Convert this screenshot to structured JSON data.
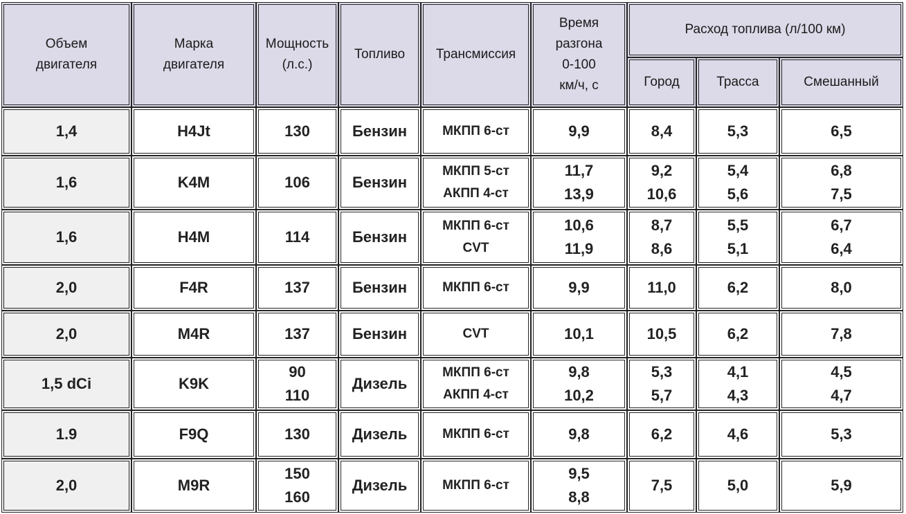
{
  "header": {
    "volume": [
      "Объем",
      "двигателя"
    ],
    "brand": [
      "Марка",
      "двигателя"
    ],
    "power": [
      "Мощность",
      "(л.с.)"
    ],
    "fuel": "Топливо",
    "transmission": "Трансмиссия",
    "accel": [
      "Время",
      "разгона",
      "0-100",
      "км/ч, с"
    ],
    "consumption": "Расход топлива (л/100 км)",
    "city": "Город",
    "highway": "Трасса",
    "mixed": "Смешанный"
  },
  "rows": [
    {
      "volume": "1,4",
      "brand": "H4Jt",
      "power": [
        "130"
      ],
      "fuel": "Бензин",
      "transmission": [
        "МКПП 6-ст"
      ],
      "accel": [
        "9,9"
      ],
      "city": [
        "8,4"
      ],
      "highway": [
        "5,3"
      ],
      "mixed": [
        "6,5"
      ]
    },
    {
      "volume": "1,6",
      "brand": "K4M",
      "power": [
        "106"
      ],
      "fuel": "Бензин",
      "transmission": [
        "МКПП 5-ст",
        "АКПП 4-ст"
      ],
      "accel": [
        "11,7",
        "13,9"
      ],
      "city": [
        "9,2",
        "10,6"
      ],
      "highway": [
        "5,4",
        "5,6"
      ],
      "mixed": [
        "6,8",
        "7,5"
      ]
    },
    {
      "volume": "1,6",
      "brand": "H4M",
      "power": [
        "114"
      ],
      "fuel": "Бензин",
      "transmission": [
        "МКПП 6-ст",
        "CVT"
      ],
      "accel": [
        "10,6",
        "11,9"
      ],
      "city": [
        "8,7",
        "8,6"
      ],
      "highway": [
        "5,5",
        "5,1"
      ],
      "mixed": [
        "6,7",
        "6,4"
      ]
    },
    {
      "volume": "2,0",
      "brand": "F4R",
      "power": [
        "137"
      ],
      "fuel": "Бензин",
      "transmission": [
        "МКПП 6-ст"
      ],
      "accel": [
        "9,9"
      ],
      "city": [
        "11,0"
      ],
      "highway": [
        "6,2"
      ],
      "mixed": [
        "8,0"
      ]
    },
    {
      "volume": "2,0",
      "brand": "M4R",
      "power": [
        "137"
      ],
      "fuel": "Бензин",
      "transmission": [
        "CVT"
      ],
      "accel": [
        "10,1"
      ],
      "city": [
        "10,5"
      ],
      "highway": [
        "6,2"
      ],
      "mixed": [
        "7,8"
      ]
    },
    {
      "volume": "1,5 dCi",
      "brand": "K9K",
      "power": [
        "90",
        "110"
      ],
      "fuel": "Дизель",
      "transmission": [
        "МКПП 6-ст",
        "АКПП 4-ст"
      ],
      "accel": [
        "9,8",
        "10,2"
      ],
      "city": [
        "5,3",
        "5,7"
      ],
      "highway": [
        "4,1",
        "4,3"
      ],
      "mixed": [
        "4,5",
        "4,7"
      ]
    },
    {
      "volume": "1.9",
      "brand": "F9Q",
      "power": [
        "130"
      ],
      "fuel": "Дизель",
      "transmission": [
        "МКПП 6-ст"
      ],
      "accel": [
        "9,8"
      ],
      "city": [
        "6,2"
      ],
      "highway": [
        "4,6"
      ],
      "mixed": [
        "5,3"
      ]
    },
    {
      "volume": "2,0",
      "brand": "M9R",
      "power": [
        "150",
        "160"
      ],
      "fuel": "Дизель",
      "transmission": [
        "МКПП 6-ст"
      ],
      "accel": [
        "9,5",
        "8,8"
      ],
      "city": [
        "7,5"
      ],
      "highway": [
        "5,0"
      ],
      "mixed": [
        "5,9"
      ]
    }
  ],
  "colors": {
    "header_bg": "#dcd9e8",
    "first_col_bg": "#f0f0f0",
    "border": "#222222"
  }
}
